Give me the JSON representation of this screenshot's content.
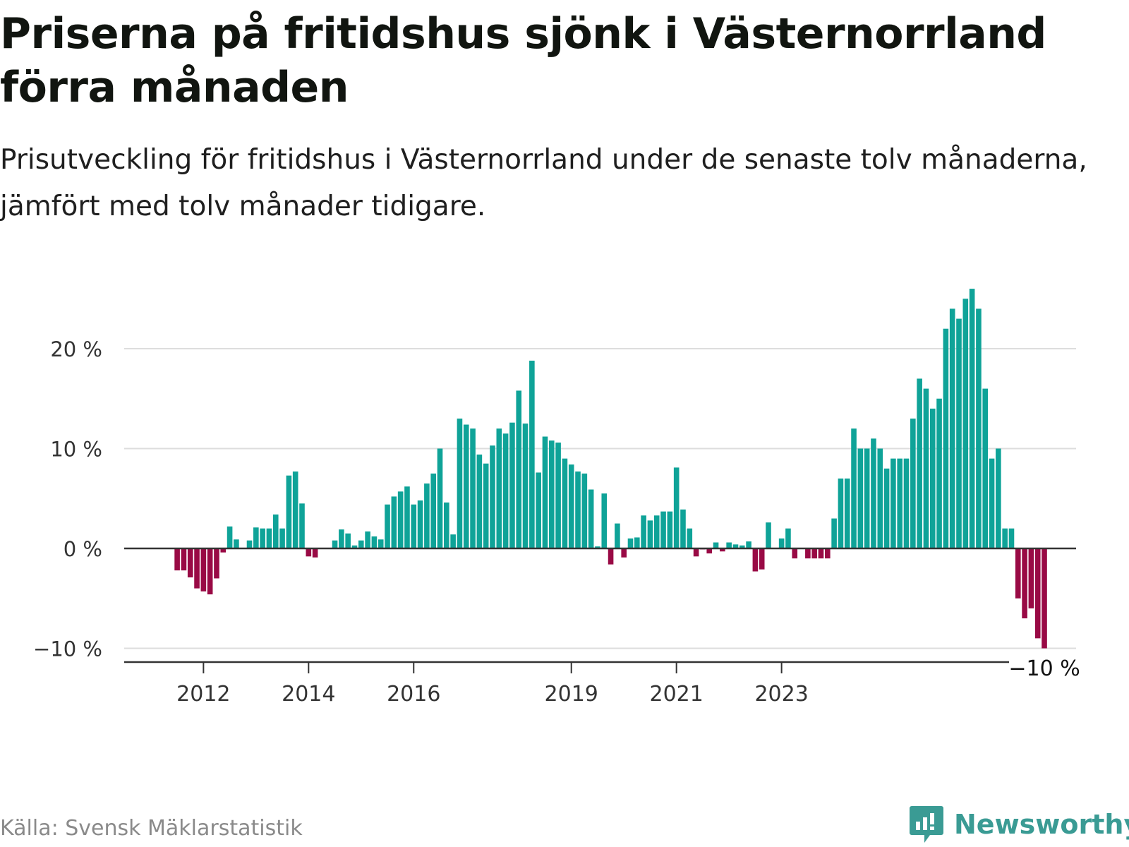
{
  "title": "Priserna på fritidshus sjönk i Västernorrland förra månaden",
  "subtitle": "Prisutveckling för fritidshus i Västernorrland under de senaste tolv månaderna, jämfört med tolv månader tidigare.",
  "source": "Källa: Svensk Mäklarstatistik",
  "brand": {
    "name": "Newsworthy",
    "icon": "newsworthy-logo-icon",
    "color": "#3a9b94"
  },
  "chart_data": {
    "type": "bar",
    "title": "",
    "xlabel": "",
    "ylabel": "",
    "ylim": [
      -10,
      26.5
    ],
    "y_ticks": [
      {
        "value": 20,
        "label": "20 %"
      },
      {
        "value": 10,
        "label": "10 %"
      },
      {
        "value": 0,
        "label": "0 %"
      },
      {
        "value": -10,
        "label": "−10 %"
      }
    ],
    "x_ticks": [
      {
        "index": 5,
        "label": "2012"
      },
      {
        "index": 21,
        "label": "2014"
      },
      {
        "index": 37,
        "label": "2016"
      },
      {
        "index": 61,
        "label": "2019"
      },
      {
        "index": 77,
        "label": "2021"
      },
      {
        "index": 93,
        "label": "2023"
      }
    ],
    "grid": true,
    "colors": {
      "positive": "#0fa398",
      "negative": "#990a45",
      "grid": "#dddddd",
      "zero_line": "#333333"
    },
    "last_value_label": "−10 %",
    "values": [
      0,
      -2.2,
      -2.2,
      -2.9,
      -4.0,
      -4.3,
      -4.6,
      -3.0,
      -0.4,
      2.2,
      0.9,
      0,
      0.8,
      2.1,
      2.0,
      2.0,
      3.4,
      2.0,
      7.3,
      7.7,
      4.5,
      -0.8,
      -0.9,
      0,
      0,
      0.8,
      1.9,
      1.5,
      0.3,
      0.8,
      1.7,
      1.2,
      0.9,
      4.4,
      5.2,
      5.7,
      6.2,
      4.4,
      4.8,
      6.5,
      7.5,
      10.0,
      4.6,
      1.4,
      13.0,
      12.4,
      12.0,
      9.4,
      8.5,
      10.3,
      12.0,
      11.5,
      12.6,
      15.8,
      12.5,
      18.8,
      7.6,
      11.2,
      10.8,
      10.6,
      9.0,
      8.4,
      7.7,
      7.5,
      5.9,
      0.2,
      5.5,
      -1.6,
      2.5,
      -0.9,
      1.0,
      1.1,
      3.3,
      2.8,
      3.3,
      3.7,
      3.7,
      8.1,
      3.9,
      2.0,
      -0.8,
      -0.1,
      -0.5,
      0.6,
      -0.3,
      0.6,
      0.4,
      0.3,
      0.7,
      -2.3,
      -2.1,
      2.6,
      0,
      1.0,
      2.0,
      -1.0,
      0,
      -1.0,
      -1.0,
      -1.0,
      -1.0,
      3.0,
      7.0,
      7.0,
      12.0,
      10.0,
      10.0,
      11.0,
      10.0,
      8.0,
      9.0,
      9.0,
      9.0,
      13.0,
      17.0,
      16.0,
      14.0,
      15.0,
      22.0,
      24.0,
      23.0,
      25.0,
      26.0,
      24.0,
      16.0,
      9.0,
      10.0,
      2.0,
      2.0,
      -5.0,
      -7.0,
      -6.0,
      -9.0,
      -10.0
    ]
  }
}
